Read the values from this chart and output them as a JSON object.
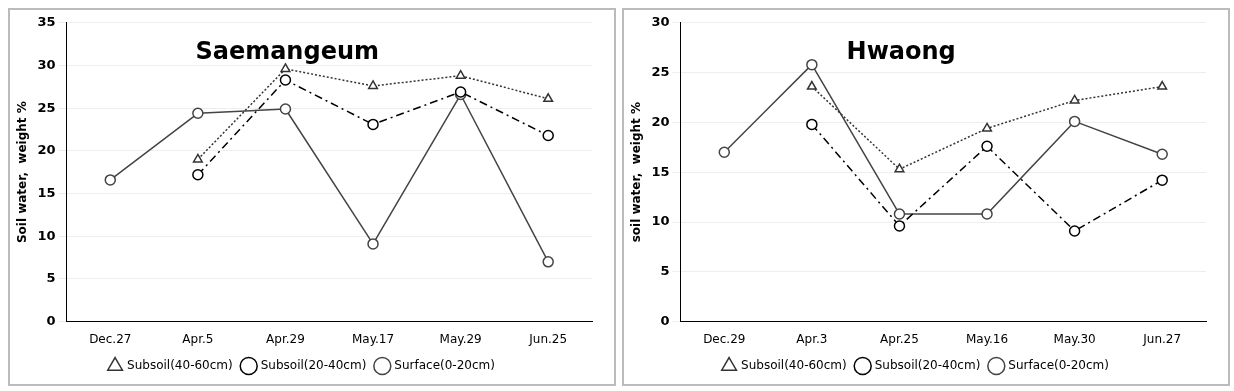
{
  "chart_data": [
    {
      "type": "line",
      "title": "Saemangeum",
      "ylabel": "Soil water,  weight %",
      "categories": [
        "Dec.27",
        "Apr.5",
        "Apr.29",
        "May.17",
        "May.29",
        "Jun.25"
      ],
      "ylim": [
        0,
        35
      ],
      "yticks": [
        0,
        5,
        10,
        15,
        20,
        25,
        30,
        35
      ],
      "grid": "y",
      "legend": "bottom",
      "series": [
        {
          "name": "Surface(0-20cm)",
          "color": "#444444",
          "marker": "circle",
          "line_style": "solid",
          "values": [
            16.6,
            24.4,
            24.9,
            9.1,
            26.6,
            7.0
          ]
        },
        {
          "name": "Subsoil(20-40cm)",
          "color": "#000000",
          "marker": "circle",
          "line_style": "dashed",
          "values": [
            null,
            17.2,
            28.3,
            23.1,
            26.9,
            21.8
          ]
        },
        {
          "name": "Subsoil(40-60cm)",
          "color": "#333333",
          "marker": "triangle",
          "line_style": "dotted",
          "values": [
            null,
            19.0,
            29.6,
            27.6,
            28.8,
            26.1
          ]
        }
      ]
    },
    {
      "type": "line",
      "title": "Hwaong",
      "ylabel": "soil water,  weight %",
      "categories": [
        "Dec.29",
        "Apr.3",
        "Apr.25",
        "May.16",
        "May.30",
        "Jun.27"
      ],
      "ylim": [
        0,
        30
      ],
      "yticks": [
        0,
        5,
        10,
        15,
        20,
        25,
        30
      ],
      "grid": "y",
      "legend": "bottom",
      "series": [
        {
          "name": "Surface(0-20cm)",
          "color": "#444444",
          "marker": "circle",
          "line_style": "solid",
          "values": [
            17.0,
            25.8,
            10.8,
            10.8,
            20.1,
            16.8
          ]
        },
        {
          "name": "Subsoil(20-40cm)",
          "color": "#000000",
          "marker": "circle",
          "line_style": "dashed",
          "values": [
            null,
            19.8,
            9.6,
            17.6,
            9.1,
            14.2
          ]
        },
        {
          "name": "Subsoil(40-60cm)",
          "color": "#333333",
          "marker": "triangle",
          "line_style": "dotted",
          "values": [
            null,
            23.6,
            15.3,
            19.4,
            22.2,
            23.6
          ]
        }
      ]
    }
  ]
}
